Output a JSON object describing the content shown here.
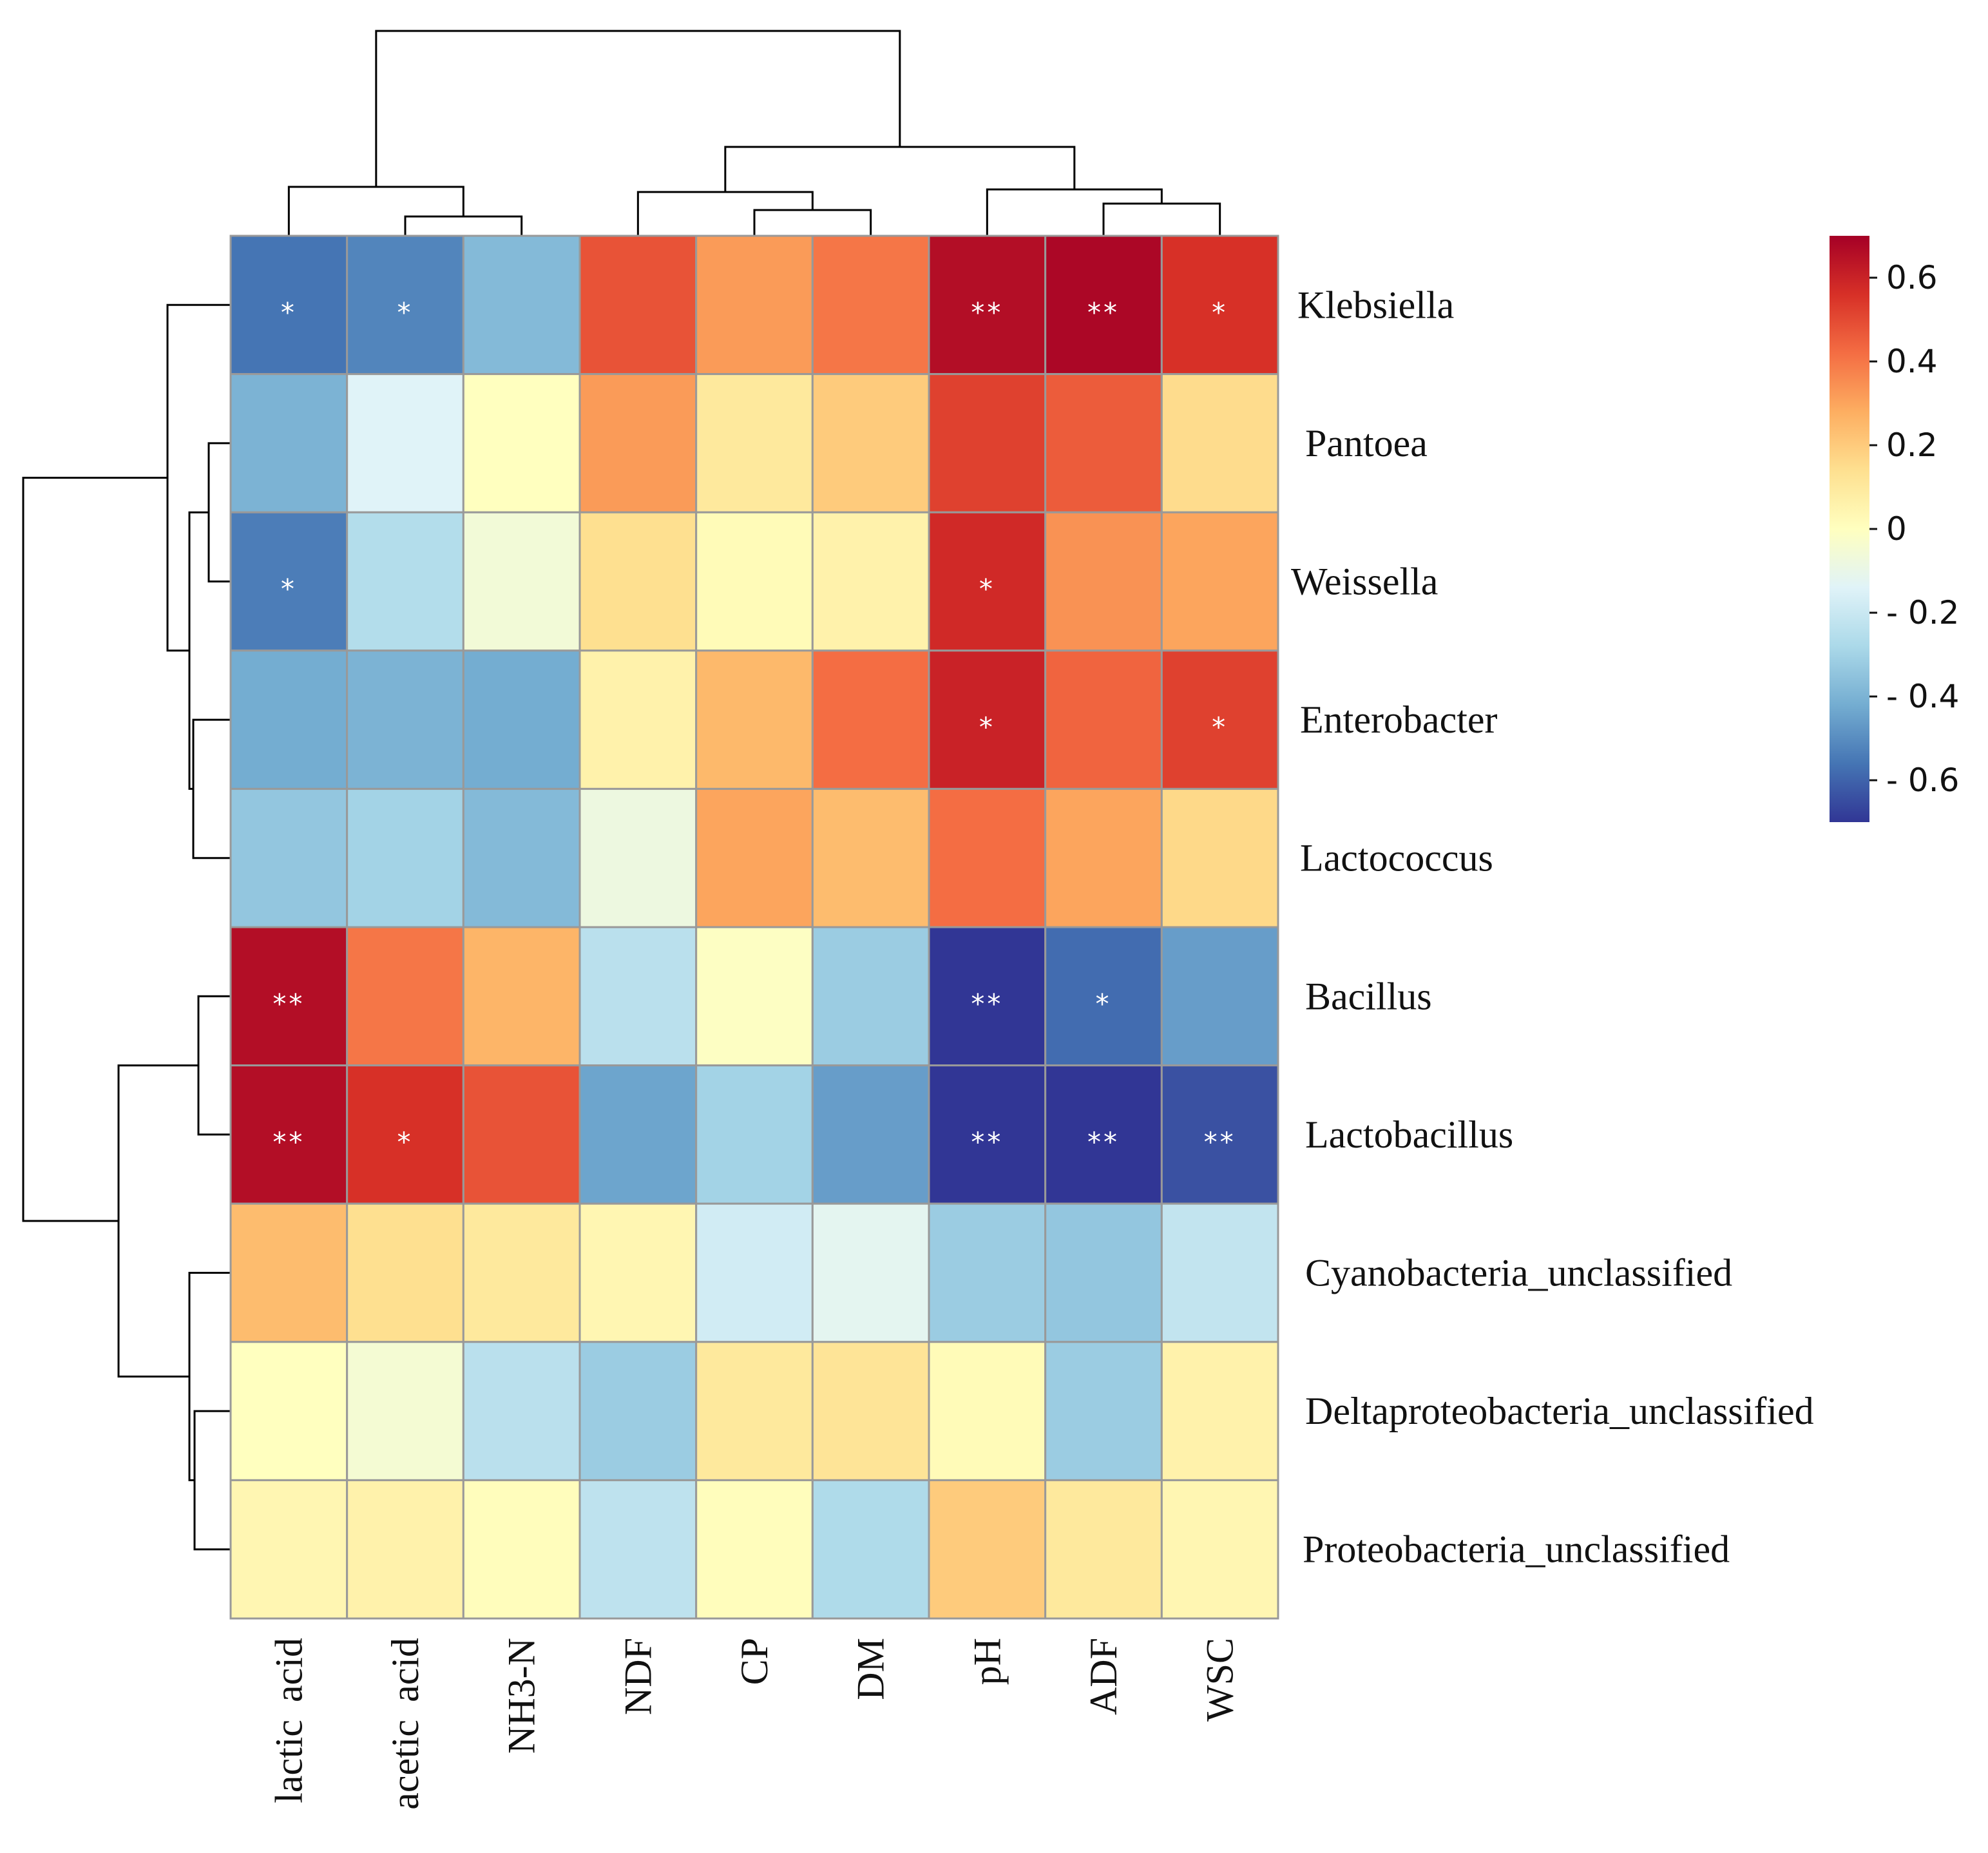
{
  "chart_data": {
    "type": "heatmap",
    "title": "",
    "columns": [
      "lactic acid",
      "acetic acid",
      "NH3-N",
      "NDF",
      "CP",
      "DM",
      "pH",
      "ADF",
      "WSC"
    ],
    "rows": [
      "Klebsiella",
      "Pantoea",
      "Weissella",
      "Enterobacter",
      "Lactococcus",
      "Bacillus",
      "Lactobacillus",
      "Cyanobacteria_unclassified",
      "Deltaproteobacteria_unclassified",
      "Proteobacteria_unclassified"
    ],
    "values": [
      [
        -0.56,
        -0.52,
        -0.38,
        0.48,
        0.32,
        0.4,
        0.66,
        0.68,
        0.56
      ],
      [
        -0.4,
        -0.14,
        0.0,
        0.32,
        0.1,
        0.2,
        0.52,
        0.46,
        0.15
      ],
      [
        -0.54,
        -0.26,
        -0.06,
        0.14,
        0.02,
        0.06,
        0.58,
        0.34,
        0.3
      ],
      [
        -0.42,
        -0.4,
        -0.42,
        0.06,
        0.25,
        0.42,
        0.6,
        0.44,
        0.52
      ],
      [
        -0.34,
        -0.3,
        -0.38,
        -0.08,
        0.3,
        0.24,
        0.42,
        0.3,
        0.16
      ],
      [
        0.66,
        0.4,
        0.26,
        -0.24,
        -0.01,
        -0.32,
        -0.7,
        -0.58,
        -0.46
      ],
      [
        0.66,
        0.56,
        0.48,
        -0.44,
        -0.3,
        -0.46,
        -0.7,
        -0.7,
        -0.64
      ],
      [
        0.24,
        0.14,
        0.1,
        0.04,
        -0.18,
        -0.12,
        -0.32,
        -0.34,
        -0.22
      ],
      [
        0.0,
        -0.05,
        -0.24,
        -0.32,
        0.1,
        0.12,
        0.02,
        -0.32,
        0.06
      ],
      [
        0.04,
        0.06,
        0.01,
        -0.23,
        0.01,
        -0.27,
        0.2,
        0.1,
        0.04
      ]
    ],
    "significance": [
      [
        "*",
        "*",
        "",
        "",
        "",
        "",
        "**",
        "**",
        "*"
      ],
      [
        "",
        "",
        "",
        "",
        "",
        "",
        "",
        "",
        ""
      ],
      [
        "*",
        "",
        "",
        "",
        "",
        "",
        "*",
        "",
        ""
      ],
      [
        "",
        "",
        "",
        "",
        "",
        "",
        "*",
        "",
        "*"
      ],
      [
        "",
        "",
        "",
        "",
        "",
        "",
        "",
        "",
        ""
      ],
      [
        "**",
        "",
        "",
        "",
        "",
        "",
        "**",
        "*",
        ""
      ],
      [
        "**",
        "*",
        "",
        "",
        "",
        "",
        "**",
        "**",
        "**"
      ],
      [
        "",
        "",
        "",
        "",
        "",
        "",
        "",
        "",
        ""
      ],
      [
        "",
        "",
        "",
        "",
        "",
        "",
        "",
        "",
        ""
      ],
      [
        "",
        "",
        "",
        "",
        "",
        "",
        "",
        "",
        ""
      ]
    ],
    "colorbar": {
      "range": [
        -0.7,
        0.7
      ],
      "ticks": [
        0.6,
        0.4,
        0.2,
        0,
        -0.2,
        -0.4,
        -0.6
      ],
      "tick_labels": [
        "0.6",
        "0.4",
        "0.2",
        "0",
        "- 0.2",
        "- 0.4",
        "- 0.6"
      ],
      "colors": [
        "#313695",
        "#4575b4",
        "#74add1",
        "#abd9e9",
        "#e0f3f8",
        "#ffffbf",
        "#fee090",
        "#fdae61",
        "#f46d43",
        "#d73027",
        "#a50026"
      ]
    },
    "cell_border_color": "#999999",
    "column_dendrogram": "clustered",
    "row_dendrogram": "clustered",
    "legend": "right"
  }
}
